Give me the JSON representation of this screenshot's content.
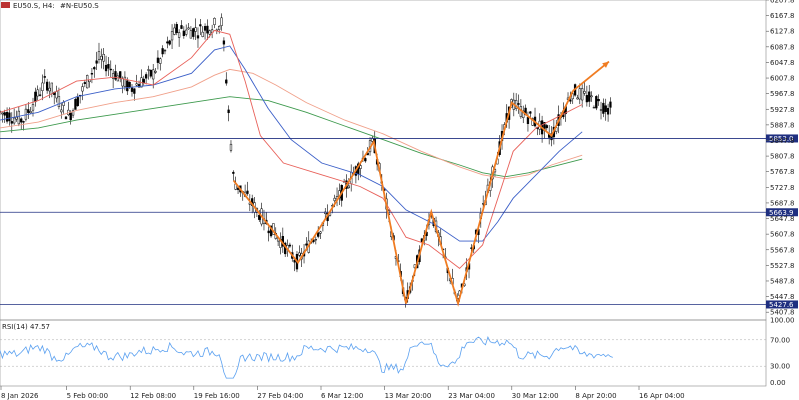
{
  "header": {
    "symbol": "EU50.S, H4:",
    "description": "#N-EU50.S"
  },
  "chart_data": {
    "type": "candlestick",
    "price_axis": {
      "min": 5387.8,
      "max": 6207.8,
      "ticks": [
        "6207.8",
        "6167.8",
        "6127.8",
        "6087.8",
        "6047.8",
        "6007.8",
        "5967.8",
        "5927.8",
        "5887.8",
        "5847.8",
        "5807.8",
        "5767.8",
        "5727.8",
        "5687.8",
        "5647.8",
        "5607.8",
        "5567.8",
        "5527.8",
        "5487.8",
        "5447.8",
        "5407.8"
      ]
    },
    "horizontal_levels": [
      {
        "value": 5853.0,
        "label": "5853.0",
        "color": "#1f2f80"
      },
      {
        "value": 5663.9,
        "label": "5663.9",
        "color": "#1f2f80"
      },
      {
        "value": 5427.6,
        "label": "5427.6",
        "color": "#1f2f80"
      }
    ],
    "time_axis": [
      "8 Jan 2026",
      "5 Feb 00:00",
      "12 Feb 08:00",
      "19 Feb 16:00",
      "27 Feb 04:00",
      "6 Mar 12:00",
      "13 Mar 20:00",
      "23 Mar 04:00",
      "30 Mar 12:00",
      "8 Apr 20:00",
      "16 Apr 04:00"
    ],
    "zigzag": [
      [
        0.305,
        5745
      ],
      [
        0.389,
        5535
      ],
      [
        0.488,
        5845
      ],
      [
        0.53,
        5430
      ],
      [
        0.563,
        5665
      ],
      [
        0.598,
        5430
      ],
      [
        0.668,
        5945
      ],
      [
        0.72,
        5860
      ],
      [
        0.748,
        5975
      ]
    ],
    "arrow_target": [
      0.795,
      6050
    ],
    "ema_fast": [
      [
        0,
        5920
      ],
      [
        0.05,
        5950
      ],
      [
        0.1,
        6000
      ],
      [
        0.15,
        6010
      ],
      [
        0.2,
        5990
      ],
      [
        0.25,
        6060
      ],
      [
        0.28,
        6130
      ],
      [
        0.3,
        6120
      ],
      [
        0.32,
        6000
      ],
      [
        0.34,
        5860
      ],
      [
        0.37,
        5790
      ],
      [
        0.42,
        5760
      ],
      [
        0.47,
        5730
      ],
      [
        0.5,
        5700
      ],
      [
        0.53,
        5600
      ],
      [
        0.56,
        5580
      ],
      [
        0.6,
        5520
      ],
      [
        0.63,
        5580
      ],
      [
        0.65,
        5700
      ],
      [
        0.67,
        5820
      ],
      [
        0.7,
        5880
      ],
      [
        0.73,
        5910
      ],
      [
        0.76,
        5940
      ]
    ],
    "ema_mid": [
      [
        0,
        5900
      ],
      [
        0.05,
        5920
      ],
      [
        0.1,
        5960
      ],
      [
        0.15,
        5980
      ],
      [
        0.2,
        5990
      ],
      [
        0.25,
        6020
      ],
      [
        0.28,
        6080
      ],
      [
        0.3,
        6090
      ],
      [
        0.32,
        6030
      ],
      [
        0.35,
        5930
      ],
      [
        0.38,
        5850
      ],
      [
        0.42,
        5790
      ],
      [
        0.47,
        5760
      ],
      [
        0.5,
        5730
      ],
      [
        0.53,
        5670
      ],
      [
        0.57,
        5630
      ],
      [
        0.6,
        5590
      ],
      [
        0.63,
        5590
      ],
      [
        0.65,
        5640
      ],
      [
        0.67,
        5700
      ],
      [
        0.7,
        5760
      ],
      [
        0.73,
        5820
      ],
      [
        0.76,
        5870
      ]
    ],
    "ema_slow": [
      [
        0,
        5880
      ],
      [
        0.05,
        5895
      ],
      [
        0.1,
        5925
      ],
      [
        0.15,
        5945
      ],
      [
        0.2,
        5960
      ],
      [
        0.25,
        5985
      ],
      [
        0.28,
        6015
      ],
      [
        0.3,
        6030
      ],
      [
        0.33,
        6020
      ],
      [
        0.36,
        5990
      ],
      [
        0.4,
        5945
      ],
      [
        0.45,
        5900
      ],
      [
        0.5,
        5865
      ],
      [
        0.55,
        5820
      ],
      [
        0.6,
        5780
      ],
      [
        0.63,
        5760
      ],
      [
        0.66,
        5750
      ],
      [
        0.69,
        5760
      ],
      [
        0.72,
        5785
      ],
      [
        0.76,
        5810
      ]
    ],
    "ema_trend": [
      [
        0,
        5870
      ],
      [
        0.05,
        5880
      ],
      [
        0.1,
        5900
      ],
      [
        0.15,
        5915
      ],
      [
        0.2,
        5930
      ],
      [
        0.25,
        5945
      ],
      [
        0.3,
        5960
      ],
      [
        0.35,
        5950
      ],
      [
        0.4,
        5920
      ],
      [
        0.45,
        5885
      ],
      [
        0.5,
        5850
      ],
      [
        0.55,
        5815
      ],
      [
        0.6,
        5785
      ],
      [
        0.63,
        5765
      ],
      [
        0.66,
        5755
      ],
      [
        0.69,
        5765
      ],
      [
        0.72,
        5780
      ],
      [
        0.76,
        5800
      ]
    ],
    "rsi": {
      "label": "RSI(14) 47.57",
      "axis_ticks": [
        "100.00",
        "70.00",
        "30.00",
        "0.00"
      ],
      "levels": [
        70,
        30
      ]
    }
  },
  "colors": {
    "candle": "#000000",
    "zigzag": "#f07c22",
    "ema_fast": "#e8615a",
    "ema_mid": "#3b5fc8",
    "ema_slow": "#f0a08a",
    "ema_trend": "#3e9a4e",
    "rsi_line": "#5aa0f0",
    "level_box": "#1f2f80"
  }
}
